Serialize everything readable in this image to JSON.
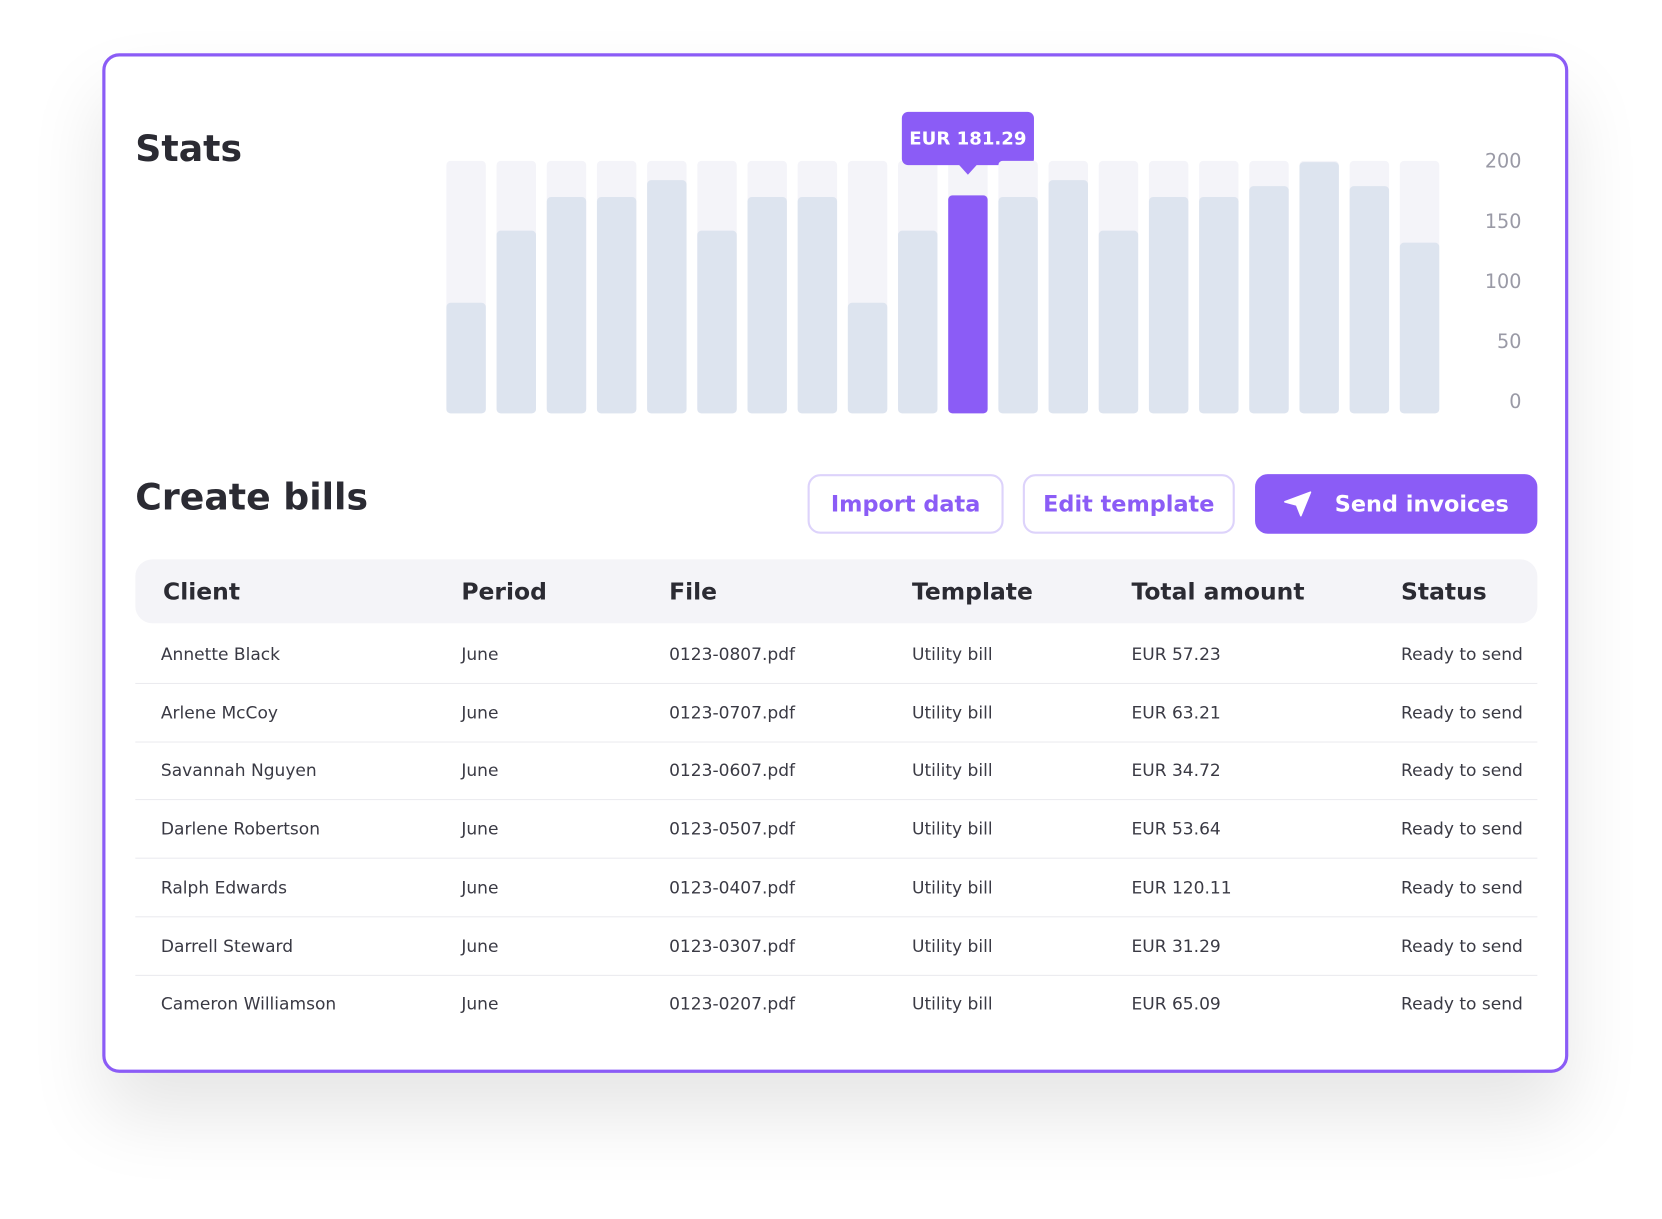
{
  "stats_title": "Stats",
  "chart_data": {
    "type": "bar",
    "values": [
      92,
      152,
      180,
      180,
      194,
      152,
      180,
      180,
      92,
      152,
      181.29,
      180,
      194,
      152,
      180,
      180,
      189,
      209,
      189,
      142
    ],
    "value_labels": [
      null,
      null,
      null,
      null,
      null,
      null,
      null,
      null,
      null,
      null,
      "EUR 181.29",
      null,
      null,
      null,
      null,
      null,
      null,
      null,
      null,
      null
    ],
    "color": "#dde4ef",
    "track_color": "#f4f4f9",
    "highlight_color": "#8b5cf6",
    "ylim": [
      0,
      210
    ],
    "yticks": [
      0,
      50,
      100,
      150,
      200
    ]
  },
  "bills_title": "Create bills",
  "buttons": [
    "Import data",
    "Edit template",
    "Send invoices"
  ],
  "table": {
    "header": [
      "Client",
      "Period",
      "File",
      "Template",
      "Total amount",
      "Status"
    ],
    "rows": [
      [
        "Annette Black",
        "June",
        "0123-0807.pdf",
        "Utility bill",
        "EUR 57.23",
        "Ready to send"
      ],
      [
        "Arlene McCoy",
        "June",
        "0123-0707.pdf",
        "Utility bill",
        "EUR 63.21",
        "Ready to send"
      ],
      [
        "Savannah Nguyen",
        "June",
        "0123-0607.pdf",
        "Utility bill",
        "EUR 34.72",
        "Ready to send"
      ],
      [
        "Darlene Robertson",
        "June",
        "0123-0507.pdf",
        "Utility bill",
        "EUR 53.64",
        "Ready to send"
      ],
      [
        "Ralph Edwards",
        "June",
        "0123-0407.pdf",
        "Utility bill",
        "EUR 120.11",
        "Ready to send"
      ],
      [
        "Darrell Steward",
        "June",
        "0123-0307.pdf",
        "Utility bill",
        "EUR 31.29",
        "Ready to send"
      ],
      [
        "Cameron Williamson",
        "June",
        "0123-0207.pdf",
        "Utility bill",
        "EUR 65.09",
        "Ready to send"
      ]
    ]
  }
}
